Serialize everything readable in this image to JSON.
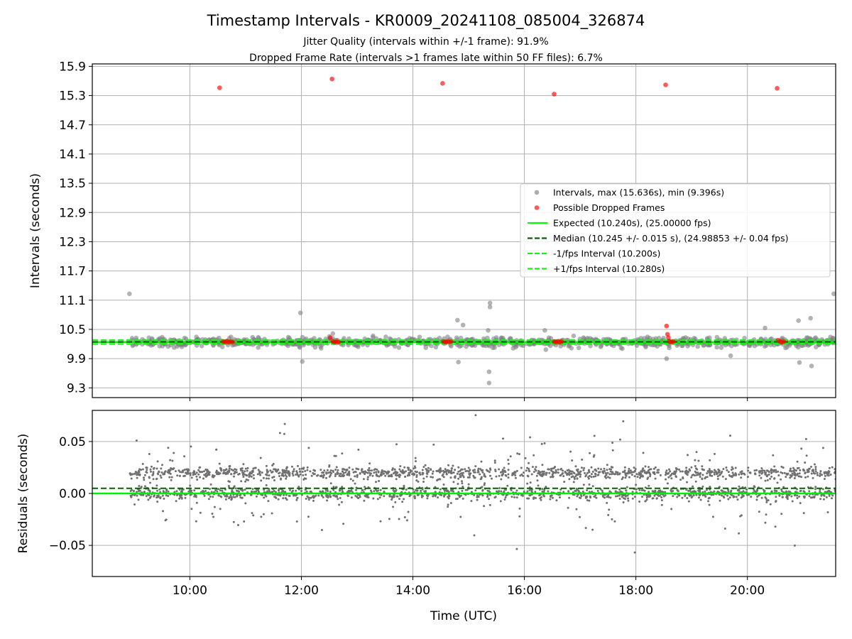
{
  "chart_data": [
    {
      "type": "scatter",
      "title": "Timestamp Intervals - KR0009_20241108_085004_326874",
      "subtitle_1": "Jitter Quality (intervals within +/-1 frame): 91.9%",
      "subtitle_2": "Dropped Frame Rate (intervals >1 frames late within 50 FF files): 6.7%",
      "ylabel": "Intervals (seconds)",
      "xlim": [
        "08:15",
        "21:35"
      ],
      "ylim": [
        9.1,
        15.95
      ],
      "x_ticks": [
        "10:00",
        "12:00",
        "14:00",
        "16:00",
        "18:00",
        "20:00"
      ],
      "y_ticks": [
        "9.3",
        "9.9",
        "10.5",
        "11.1",
        "11.7",
        "12.3",
        "12.9",
        "13.5",
        "14.1",
        "14.7",
        "15.3",
        "15.9"
      ],
      "grid": true,
      "legend_position": "center-right",
      "legend": [
        {
          "label": "Intervals, max (15.636s), min (9.396s)",
          "color": "#808080",
          "marker": "dot"
        },
        {
          "label": "Possible Dropped Frames",
          "color": "#ff0000",
          "marker": "dot"
        },
        {
          "label": "Expected (10.240s), (25.00000 fps)",
          "color": "#00ff00",
          "marker": "solid"
        },
        {
          "label": "Median (10.245 +/- 0.015 s), (24.98853 +/- 0.04 fps)",
          "color": "#006400",
          "marker": "dashed"
        },
        {
          "label": "-1/fps Interval (10.200s)",
          "color": "#00ff00",
          "marker": "dashed"
        },
        {
          "label": "+1/fps Interval (10.280s)",
          "color": "#00ff00",
          "marker": "dashed"
        }
      ],
      "reference_lines": {
        "expected": 10.24,
        "median": 10.245,
        "minus_1fps": 10.2,
        "plus_1fps": 10.28
      },
      "series": [
        {
          "name": "Possible Dropped Frames",
          "points": [
            {
              "x": "10:32",
              "y": 15.46
            },
            {
              "x": "12:33",
              "y": 15.64
            },
            {
              "x": "14:32",
              "y": 15.55
            },
            {
              "x": "16:32",
              "y": 15.33
            },
            {
              "x": "18:32",
              "y": 15.52
            },
            {
              "x": "20:32",
              "y": 15.45
            },
            {
              "x": "10:36",
              "y": 10.25
            },
            {
              "x": "10:38",
              "y": 10.24
            },
            {
              "x": "10:40",
              "y": 10.26
            },
            {
              "x": "10:42",
              "y": 10.24
            },
            {
              "x": "10:44",
              "y": 10.25
            },
            {
              "x": "10:46",
              "y": 10.24
            },
            {
              "x": "12:31",
              "y": 10.33
            },
            {
              "x": "12:34",
              "y": 10.25
            },
            {
              "x": "12:36",
              "y": 10.24
            },
            {
              "x": "12:38",
              "y": 10.25
            },
            {
              "x": "12:40",
              "y": 10.24
            },
            {
              "x": "14:33",
              "y": 10.25
            },
            {
              "x": "14:35",
              "y": 10.24
            },
            {
              "x": "14:37",
              "y": 10.25
            },
            {
              "x": "14:39",
              "y": 10.24
            },
            {
              "x": "14:41",
              "y": 10.25
            },
            {
              "x": "16:32",
              "y": 10.25
            },
            {
              "x": "16:34",
              "y": 10.24
            },
            {
              "x": "16:36",
              "y": 10.25
            },
            {
              "x": "16:38",
              "y": 10.24
            },
            {
              "x": "16:40",
              "y": 10.25
            },
            {
              "x": "18:33",
              "y": 10.57
            },
            {
              "x": "18:34",
              "y": 10.4
            },
            {
              "x": "18:35",
              "y": 10.33
            },
            {
              "x": "18:36",
              "y": 10.25
            },
            {
              "x": "18:38",
              "y": 10.24
            },
            {
              "x": "18:40",
              "y": 10.25
            },
            {
              "x": "20:33",
              "y": 10.28
            },
            {
              "x": "20:35",
              "y": 10.25
            },
            {
              "x": "20:37",
              "y": 10.24
            },
            {
              "x": "20:39",
              "y": 10.25
            }
          ]
        },
        {
          "name": "Intervals outliers",
          "points": [
            {
              "x": "08:55",
              "y": 11.23
            },
            {
              "x": "11:59",
              "y": 10.84
            },
            {
              "x": "12:01",
              "y": 9.84
            },
            {
              "x": "14:48",
              "y": 10.69
            },
            {
              "x": "14:49",
              "y": 9.83
            },
            {
              "x": "14:54",
              "y": 10.59
            },
            {
              "x": "15:23",
              "y": 11.04
            },
            {
              "x": "15:23",
              "y": 10.96
            },
            {
              "x": "15:22",
              "y": 9.63
            },
            {
              "x": "15:22",
              "y": 9.4
            },
            {
              "x": "15:21",
              "y": 10.48
            },
            {
              "x": "18:33",
              "y": 9.9
            },
            {
              "x": "19:42",
              "y": 9.96
            },
            {
              "x": "20:55",
              "y": 10.68
            },
            {
              "x": "20:56",
              "y": 9.82
            },
            {
              "x": "21:08",
              "y": 10.73
            },
            {
              "x": "21:09",
              "y": 9.75
            },
            {
              "x": "21:33",
              "y": 11.23
            },
            {
              "x": "20:19",
              "y": 10.53
            },
            {
              "x": "16:22",
              "y": 10.48
            }
          ]
        }
      ]
    },
    {
      "type": "scatter",
      "ylabel": "Residuals (seconds)",
      "xlabel": "Time (UTC)",
      "xlim": [
        "08:15",
        "21:35"
      ],
      "ylim": [
        -0.08,
        0.08
      ],
      "x_ticks": [
        "10:00",
        "12:00",
        "14:00",
        "16:00",
        "18:00",
        "20:00"
      ],
      "y_ticks": [
        "0.05",
        "0.00",
        "−0.05"
      ],
      "grid": true,
      "reference_lines": {
        "zero": 0.0,
        "median_offset": 0.005
      },
      "series": [
        {
          "name": "Residuals",
          "x_range": [
            "08:55",
            "21:35"
          ],
          "bands": [
            0.02,
            0.0
          ],
          "spread": 0.08
        }
      ]
    }
  ]
}
